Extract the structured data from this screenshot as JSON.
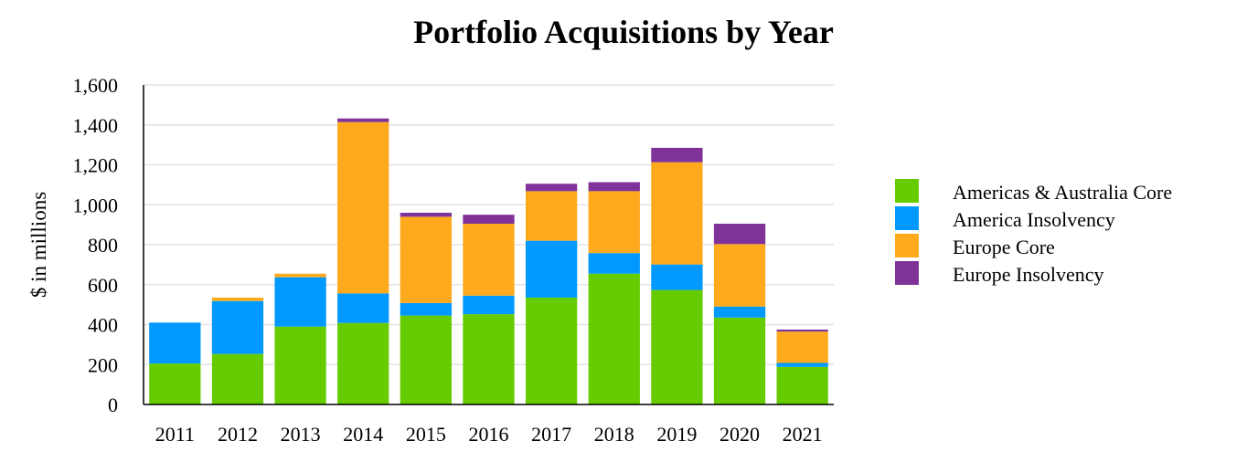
{
  "chart_data": {
    "type": "bar",
    "stacked": true,
    "title": "Portfolio Acquisitions by Year",
    "xlabel": "",
    "ylabel": "$ in millions",
    "ylim": [
      0,
      1600
    ],
    "yticks": [
      0,
      200,
      400,
      600,
      800,
      1000,
      1200,
      1400,
      1600
    ],
    "ytick_labels": [
      "0",
      "200",
      "400",
      "600",
      "800",
      "1,000",
      "1,200",
      "1,400",
      "1,600"
    ],
    "grid": true,
    "legend_position": "right",
    "categories": [
      "2011",
      "2012",
      "2013",
      "2014",
      "2015",
      "2016",
      "2017",
      "2018",
      "2019",
      "2020",
      "2021"
    ],
    "series": [
      {
        "name": "Americas & Australia Core",
        "color": "#66cc00",
        "values": [
          205,
          253,
          390,
          408,
          445,
          452,
          535,
          655,
          573,
          435,
          188
        ]
      },
      {
        "name": "America Insolvency",
        "color": "#0099ff",
        "values": [
          205,
          265,
          247,
          148,
          63,
          93,
          285,
          103,
          128,
          55,
          20
        ]
      },
      {
        "name": "Europe Core",
        "color": "#ffaa1d",
        "values": [
          0,
          17,
          18,
          858,
          432,
          360,
          248,
          310,
          512,
          313,
          157
        ]
      },
      {
        "name": "Europe Insolvency",
        "color": "#7f3399",
        "values": [
          0,
          0,
          0,
          18,
          20,
          45,
          37,
          45,
          72,
          102,
          10
        ]
      }
    ]
  }
}
